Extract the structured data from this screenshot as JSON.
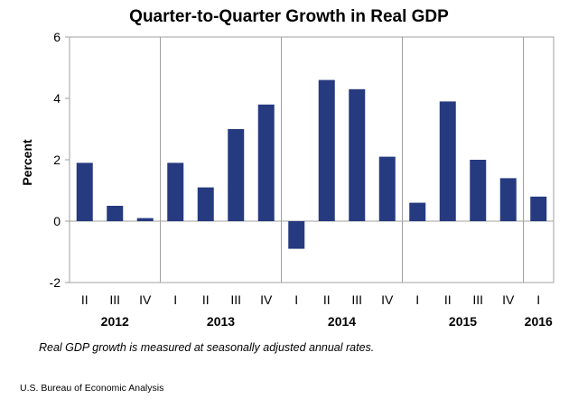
{
  "chart_data": {
    "type": "bar",
    "title": "Quarter-to-Quarter Growth in Real GDP",
    "ylabel": "Percent",
    "xlabel": "",
    "ylim": [
      -2,
      6
    ],
    "yticks": [
      6,
      4,
      2,
      0,
      -2
    ],
    "grid": false,
    "bar_color": "#263a80",
    "categories": [
      "II",
      "III",
      "IV",
      "I",
      "II",
      "III",
      "IV",
      "I",
      "II",
      "III",
      "IV",
      "I",
      "II",
      "III",
      "IV",
      "I"
    ],
    "values": [
      1.9,
      0.5,
      0.1,
      1.9,
      1.1,
      3.0,
      3.8,
      -0.9,
      4.6,
      4.3,
      2.1,
      0.6,
      3.9,
      2.0,
      1.4,
      0.8
    ],
    "years": [
      {
        "label": "2012",
        "first_index": 0,
        "last_index": 2
      },
      {
        "label": "2013",
        "first_index": 3,
        "last_index": 6
      },
      {
        "label": "2014",
        "first_index": 7,
        "last_index": 10
      },
      {
        "label": "2015",
        "first_index": 11,
        "last_index": 14
      },
      {
        "label": "2016",
        "first_index": 15,
        "last_index": 15
      }
    ]
  },
  "footnote": "Real GDP growth is measured at seasonally adjusted annual rates.",
  "source": "U.S. Bureau of Economic Analysis"
}
